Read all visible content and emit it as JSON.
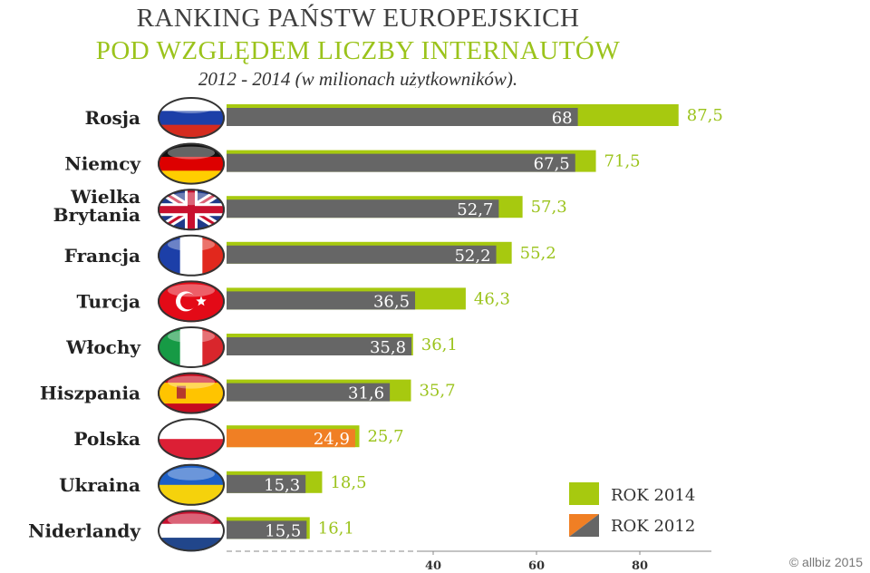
{
  "header": {
    "title_line1": "RANKING PAŃSTW EUROPEJSKICH",
    "title_line2": "POD WZGLĘDEM LICZBY INTERNAUTÓW",
    "subtitle": "2012 - 2014 (w milionach użytkowników)."
  },
  "copyright": "© allbiz 2015",
  "colors": {
    "rok_2014": "#a7c90f",
    "rok_2012": "#666666",
    "polska_2012": "#f07f24",
    "title_accent": "#9bc31c"
  },
  "chart_data": {
    "type": "bar",
    "orientation": "horizontal",
    "categories": [
      "Rosja",
      "Niemcy",
      "Wielka Brytania",
      "Francja",
      "Turcja",
      "Włochy",
      "Hiszpania",
      "Polska",
      "Ukraina",
      "Niderlandy"
    ],
    "series": [
      {
        "name": "ROK 2014",
        "values": [
          87.5,
          71.5,
          57.3,
          55.2,
          46.3,
          36.1,
          35.7,
          25.7,
          18.5,
          16.1
        ],
        "labels": [
          "87,5",
          "71,5",
          "57,3",
          "55,2",
          "46,3",
          "36,1",
          "35,7",
          "25,7",
          "18,5",
          "16,1"
        ]
      },
      {
        "name": "ROK 2012",
        "values": [
          68,
          67.5,
          52.7,
          52.2,
          36.5,
          35.8,
          31.6,
          24.9,
          15.3,
          15.5
        ],
        "labels": [
          "68",
          "67,5",
          "52,7",
          "52,2",
          "36,5",
          "35,8",
          "31,6",
          "24,9",
          "15,3",
          "15,5"
        ]
      }
    ],
    "flags": [
      "russia-flag-icon",
      "germany-flag-icon",
      "uk-flag-icon",
      "france-flag-icon",
      "turkey-flag-icon",
      "italy-flag-icon",
      "spain-flag-icon",
      "poland-flag-icon",
      "ukraine-flag-icon",
      "netherlands-flag-icon"
    ],
    "x_ticks": [
      40,
      60,
      80
    ],
    "xlim": [
      0,
      95
    ],
    "legend_position": "bottom-right",
    "highlight_category": "Polska"
  }
}
